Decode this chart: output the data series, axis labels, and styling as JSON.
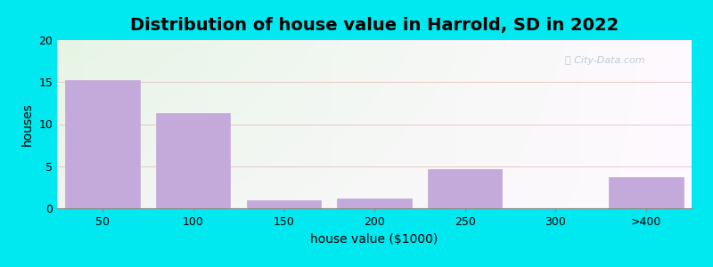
{
  "title": "Distribution of house value in Harrold, SD in 2022",
  "xlabel": "house value ($1000)",
  "ylabel": "houses",
  "categories": [
    "50",
    "100",
    "150",
    "200",
    "250",
    "300",
    ">400"
  ],
  "values": [
    15.2,
    11.3,
    1.0,
    1.2,
    4.7,
    0,
    3.7
  ],
  "bar_color": "#c4aada",
  "bar_edgecolor": "#c4aada",
  "ylim": [
    0,
    20
  ],
  "yticks": [
    0,
    5,
    10,
    15,
    20
  ],
  "background_outer": "#00e8f0",
  "bg_top_left": "#d8eed8",
  "bg_top_right": "#f0f5f0",
  "bg_bottom_left": "#e8f5e8",
  "bg_bottom_right": "#ffffff",
  "grid_color": "#e8c0c0",
  "title_fontsize": 14,
  "axis_label_fontsize": 10,
  "tick_fontsize": 9,
  "bar_width": 0.82
}
